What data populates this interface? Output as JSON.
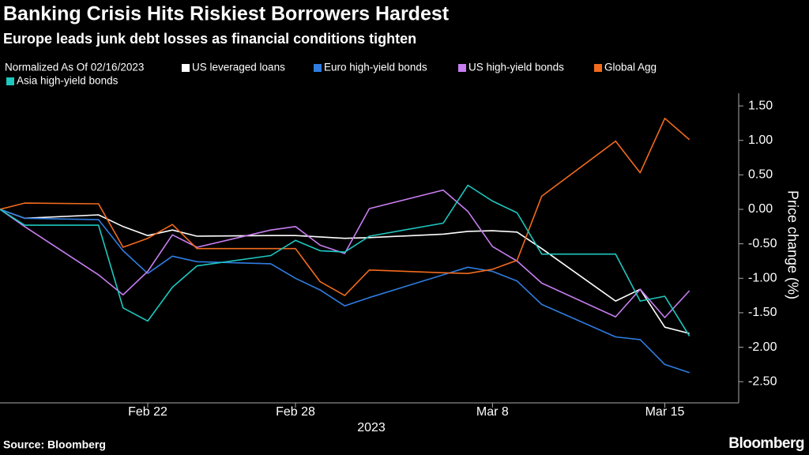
{
  "chart_data": {
    "type": "line",
    "title": "Banking Crisis Hits Riskiest Borrowers Hardest",
    "subtitle": "Europe leads junk debt losses as financial conditions tighten",
    "legend_title": "Normalized As Of 02/16/2023",
    "ylabel": "Price change (%)",
    "xlabel": "2023",
    "source": "Source: Bloomberg",
    "brand": "Bloomberg",
    "x": [
      "2023-02-16",
      "2023-02-17",
      "2023-02-20",
      "2023-02-21",
      "2023-02-22",
      "2023-02-23",
      "2023-02-24",
      "2023-02-27",
      "2023-02-28",
      "2023-03-01",
      "2023-03-02",
      "2023-03-03",
      "2023-03-06",
      "2023-03-07",
      "2023-03-08",
      "2023-03-09",
      "2023-03-10",
      "2023-03-13",
      "2023-03-14",
      "2023-03-15",
      "2023-03-16"
    ],
    "xlim": [
      "2023-02-16",
      "2023-03-18"
    ],
    "xticks": [
      {
        "value": "2023-02-22",
        "label": "Feb 22"
      },
      {
        "value": "2023-02-28",
        "label": "Feb 28"
      },
      {
        "value": "2023-03-08",
        "label": "Mar 8"
      },
      {
        "value": "2023-03-15",
        "label": "Mar 15"
      }
    ],
    "ylim": [
      -2.75,
      1.65
    ],
    "yticks": [
      {
        "value": 1.5,
        "label": "1.50"
      },
      {
        "value": 1,
        "label": "1.00"
      },
      {
        "value": 0.5,
        "label": "0.50"
      },
      {
        "value": 0,
        "label": "0.00"
      },
      {
        "value": -0.5,
        "label": "-0.50"
      },
      {
        "value": -1,
        "label": "-1.00"
      },
      {
        "value": -1.5,
        "label": "-1.50"
      },
      {
        "value": -2,
        "label": "-2.00"
      },
      {
        "value": -2.5,
        "label": "-2.50"
      }
    ],
    "series": [
      {
        "name": "US leveraged loans",
        "color": "#ffffff",
        "values": [
          0,
          -0.13,
          -0.08,
          -0.25,
          -0.38,
          -0.3,
          -0.39,
          -0.38,
          -0.38,
          -0.4,
          -0.42,
          -0.41,
          -0.36,
          -0.32,
          -0.31,
          -0.33,
          -0.57,
          -1.33,
          -1.16,
          -1.71,
          -1.8
        ]
      },
      {
        "name": "Euro high-yield bonds",
        "color": "#2f7de1",
        "values": [
          0,
          -0.13,
          -0.15,
          -0.6,
          -0.93,
          -0.68,
          -0.76,
          -0.79,
          -1.0,
          -1.17,
          -1.4,
          -1.28,
          -0.95,
          -0.84,
          -0.9,
          -1.04,
          -1.38,
          -1.85,
          -1.89,
          -2.25,
          -2.37
        ]
      },
      {
        "name": "US high-yield bonds",
        "color": "#c77ef0",
        "values": [
          0,
          -0.25,
          -0.95,
          -1.24,
          -0.9,
          -0.37,
          -0.55,
          -0.3,
          -0.25,
          -0.52,
          -0.64,
          0.01,
          0.28,
          -0.03,
          -0.54,
          -0.75,
          -1.07,
          -1.56,
          -1.16,
          -1.57,
          -1.18
        ]
      },
      {
        "name": "Global Agg",
        "color": "#f26b1d",
        "values": [
          0,
          0.09,
          0.08,
          -0.55,
          -0.42,
          -0.22,
          -0.57,
          -0.57,
          -0.57,
          -1.05,
          -1.25,
          -0.88,
          -0.92,
          -0.93,
          -0.87,
          -0.74,
          0.19,
          0.99,
          0.53,
          1.32,
          1.01
        ]
      },
      {
        "name": "Asia high-yield bonds",
        "color": "#1ec8c0",
        "values": [
          0,
          -0.23,
          -0.23,
          -1.43,
          -1.62,
          -1.13,
          -0.82,
          -0.67,
          -0.45,
          -0.6,
          -0.62,
          -0.39,
          -0.2,
          0.35,
          0.12,
          -0.05,
          -0.65,
          -0.65,
          -1.33,
          -1.26,
          -1.84
        ]
      }
    ]
  }
}
